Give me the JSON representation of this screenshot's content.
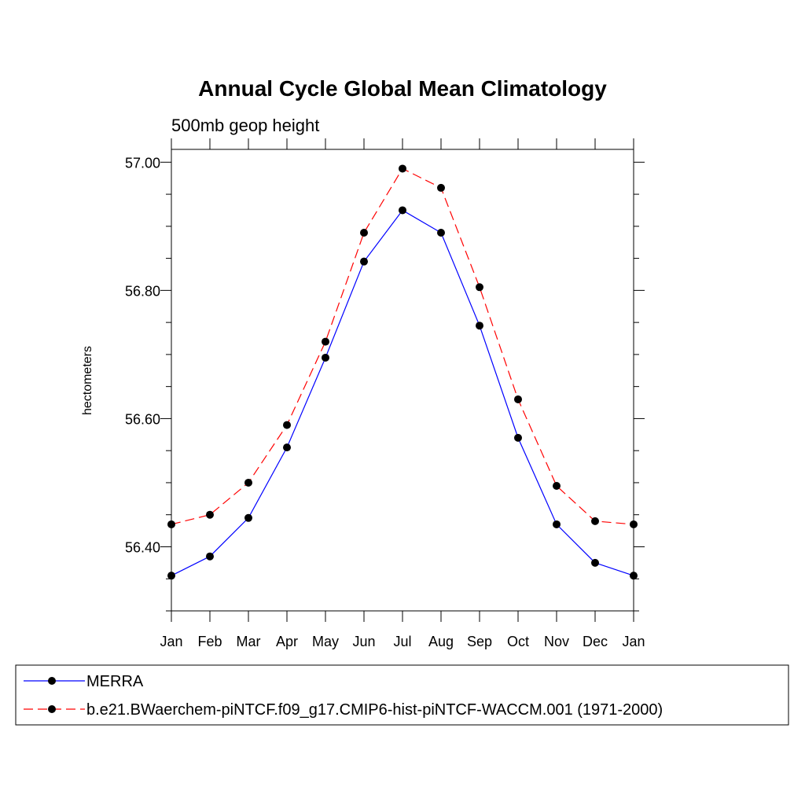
{
  "chart_data": {
    "type": "line",
    "title": "Annual Cycle Global Mean Climatology",
    "subtitle": "500mb geop height",
    "ylabel": "hectometers",
    "xlabel": "",
    "categories": [
      "Jan",
      "Feb",
      "Mar",
      "Apr",
      "May",
      "Jun",
      "Jul",
      "Aug",
      "Sep",
      "Oct",
      "Nov",
      "Dec",
      "Jan"
    ],
    "ylim": [
      56.3,
      57.02
    ],
    "yticks": [
      56.4,
      56.6,
      56.8,
      57.0
    ],
    "ytick_labels": [
      "56.40",
      "56.60",
      "56.80",
      "57.00"
    ],
    "y_minor_step": 0.05,
    "grid": false,
    "legend_position": "bottom",
    "series": [
      {
        "name": "MERRA",
        "color": "#0000ff",
        "dash": "solid",
        "marker": "filled-circle",
        "values": [
          56.355,
          56.385,
          56.445,
          56.555,
          56.695,
          56.845,
          56.925,
          56.89,
          56.745,
          56.57,
          56.435,
          56.375,
          56.355
        ]
      },
      {
        "name": "b.e21.BWaerchem-piNTCF.f09_g17.CMIP6-hist-piNTCF-WACCM.001 (1971-2000)",
        "color": "#ff0000",
        "dash": "dashed",
        "marker": "filled-circle",
        "values": [
          56.435,
          56.45,
          56.5,
          56.59,
          56.72,
          56.89,
          56.99,
          56.96,
          56.805,
          56.63,
          56.495,
          56.44,
          56.435
        ]
      }
    ]
  }
}
